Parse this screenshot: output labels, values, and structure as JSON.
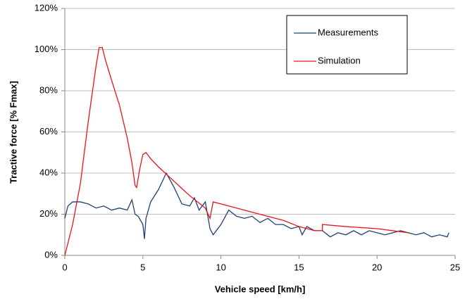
{
  "chart_data": {
    "type": "line",
    "x_label": "Vehicle speed [km/h]",
    "y_label": "Tractive force [% Fmax]",
    "xlim": [
      0,
      25
    ],
    "xticks": [
      0,
      5,
      10,
      15,
      20,
      25
    ],
    "ylim": [
      0,
      120
    ],
    "yticks": [
      {
        "value": 0,
        "label": "0%"
      },
      {
        "value": 20,
        "label": "20%"
      },
      {
        "value": 40,
        "label": "40%"
      },
      {
        "value": 60,
        "label": "60%"
      },
      {
        "value": 80,
        "label": "80%"
      },
      {
        "value": 100,
        "label": "100%"
      },
      {
        "value": 120,
        "label": "120%"
      }
    ],
    "grid": true,
    "legend": "upper right",
    "series": [
      {
        "name": "Measurements",
        "color": "#1f3f73",
        "x": [
          0,
          0.2,
          0.5,
          1,
          1.5,
          2,
          2.5,
          3,
          3.5,
          4,
          4.3,
          4.5,
          4.7,
          5,
          5.1,
          5.2,
          5.5,
          6,
          6.5,
          7,
          7.5,
          8,
          8.3,
          8.6,
          9,
          9.3,
          9.5,
          10,
          10.5,
          11,
          11.5,
          12,
          12.5,
          13,
          13.5,
          14,
          14.5,
          15,
          15.2,
          15.5,
          16,
          16.5,
          17,
          17.5,
          18,
          18.5,
          19,
          19.5,
          20,
          20.5,
          21,
          21.5,
          22,
          22.5,
          23,
          23.5,
          24,
          24.5,
          24.6
        ],
        "values": [
          18,
          24,
          26,
          26,
          25,
          23,
          24,
          22,
          23,
          22,
          27,
          20,
          19,
          15,
          8,
          18,
          26,
          32,
          40,
          33,
          25,
          24,
          28,
          22,
          26,
          13,
          10,
          15,
          22,
          19,
          18,
          19,
          16,
          18,
          15,
          15,
          13,
          14,
          10,
          14,
          12,
          12,
          9,
          11,
          10,
          12,
          10,
          12,
          11,
          10,
          11,
          12,
          11,
          10,
          11,
          9,
          10,
          9,
          11
        ]
      },
      {
        "name": "Simulation",
        "color": "#e8141b",
        "x": [
          0,
          0.5,
          1,
          1.5,
          2,
          2.2,
          2.4,
          2.6,
          3,
          3.5,
          4,
          4.3,
          4.5,
          4.6,
          4.8,
          5,
          5.2,
          5.5,
          6,
          7,
          8,
          9,
          9.3,
          9.5,
          10,
          12,
          14,
          15,
          16,
          16.5,
          16.5,
          18,
          20,
          22
        ],
        "values": [
          0,
          15,
          35,
          65,
          92,
          101,
          101,
          95,
          85,
          73,
          57,
          45,
          34,
          33,
          42,
          49,
          50,
          47,
          43,
          36,
          29,
          23,
          18,
          26,
          25,
          21,
          17,
          14,
          12,
          12,
          15,
          14,
          13,
          11
        ]
      }
    ]
  }
}
